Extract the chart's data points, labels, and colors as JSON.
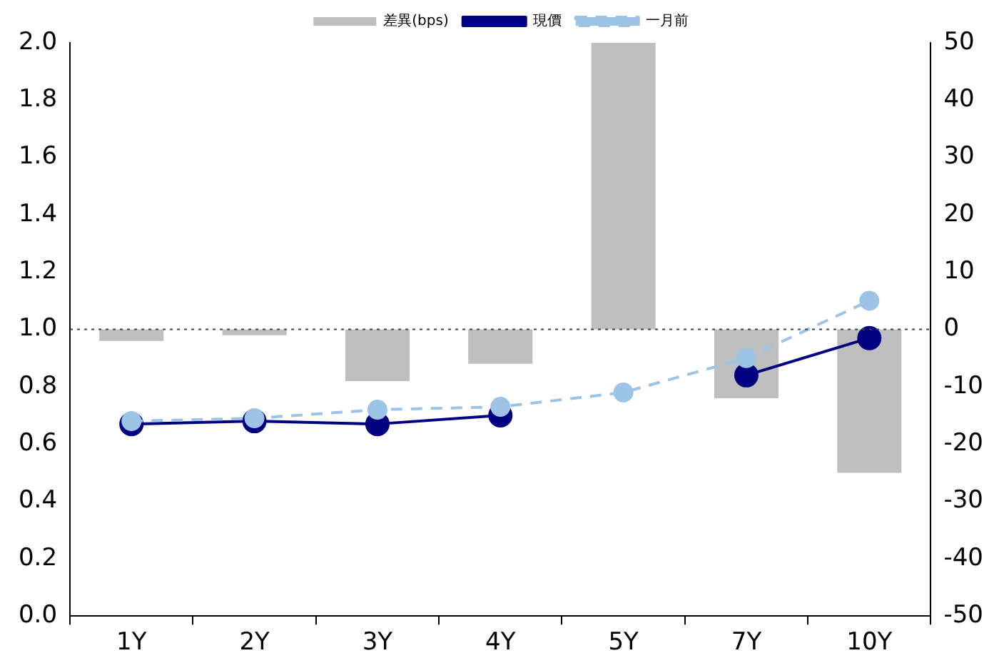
{
  "chart_data": {
    "type": "line",
    "categories": [
      "1Y",
      "2Y",
      "3Y",
      "4Y",
      "5Y",
      "7Y",
      "10Y"
    ],
    "series": [
      {
        "name": "差異(bps)",
        "type": "bar",
        "axis": "y2",
        "color": "#bfbfbf",
        "values": [
          -2,
          -1,
          -9,
          -6,
          50,
          -12,
          -25
        ]
      },
      {
        "name": "現價",
        "color": "#000080",
        "line_style": "solid",
        "values": [
          0.67,
          0.68,
          0.67,
          0.7,
          null,
          0.84,
          0.97
        ]
      },
      {
        "name": "一月前",
        "color": "#9dc3e6",
        "line_style": "dashed",
        "values": [
          0.68,
          0.69,
          0.72,
          0.73,
          0.78,
          0.9,
          1.1
        ]
      }
    ],
    "ylim": [
      0,
      2
    ],
    "yticks": [
      {
        "value": 0,
        "label": "0.0"
      },
      0.2,
      0.4,
      0.6,
      0.8,
      {
        "value": 1,
        "label": "1.0"
      },
      1.2,
      1.4,
      1.6,
      1.8,
      {
        "value": 2,
        "label": "2.0"
      }
    ],
    "y2lim": [
      -50,
      50
    ],
    "y2ticks": [
      -50,
      -40,
      -30,
      -20,
      -10,
      0,
      10,
      20,
      30,
      40,
      50
    ],
    "ref_lines": [
      {
        "axis": "y2",
        "value": 0,
        "color": "#404040",
        "line_style": "dotted"
      }
    ],
    "marker": "circle",
    "legend": "top",
    "grid": false
  }
}
